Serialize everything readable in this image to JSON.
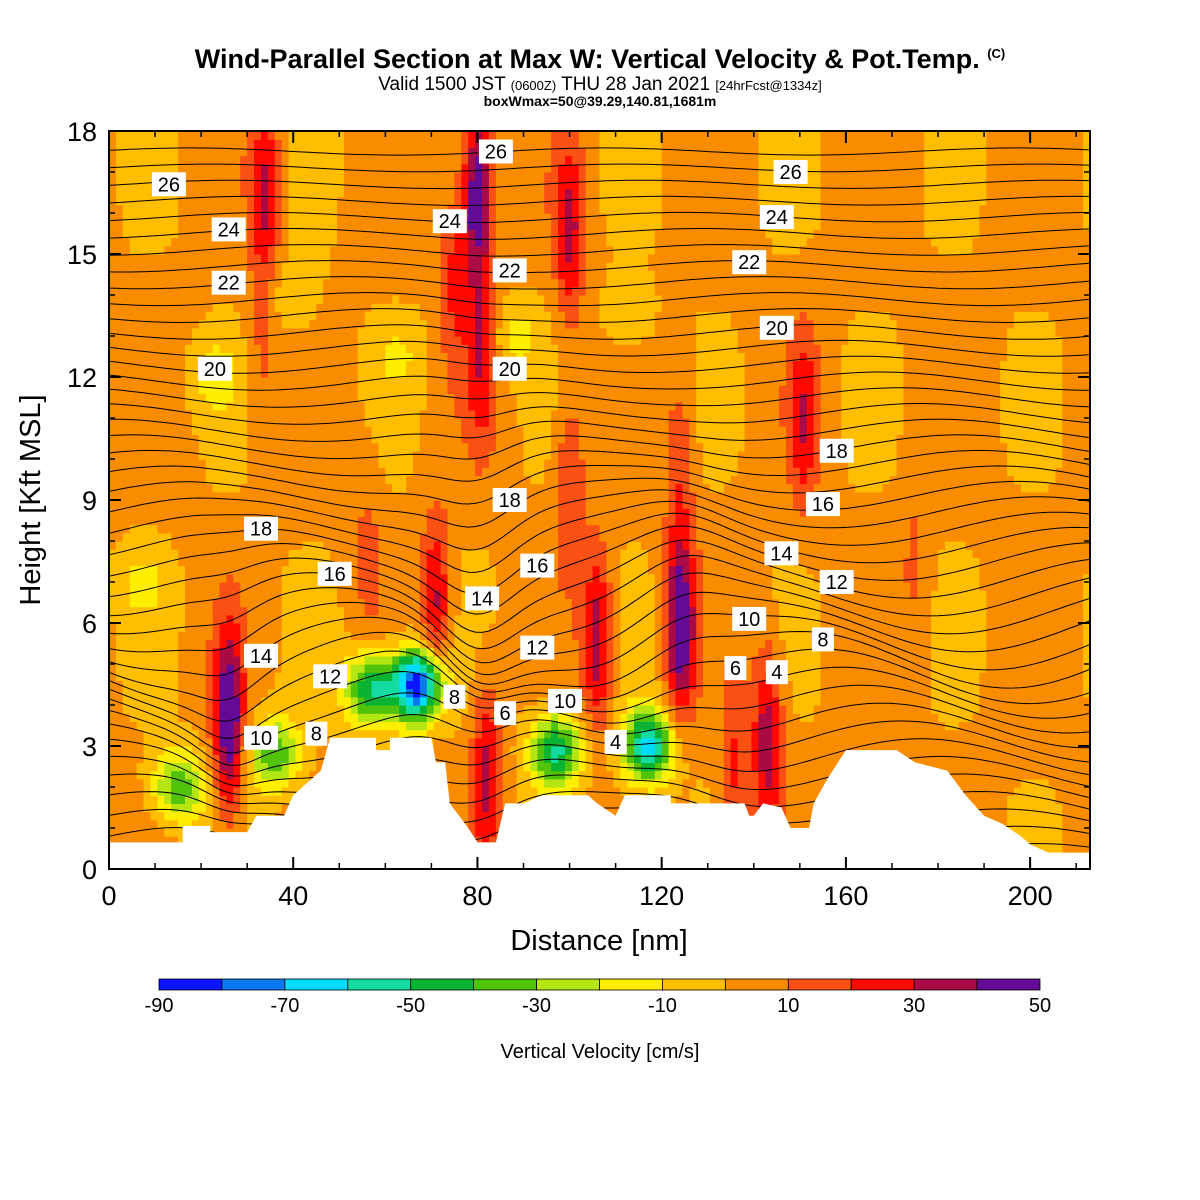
{
  "title": {
    "main": "Wind-Parallel Section at Max W: Vertical Velocity & Pot.Temp.",
    "main_mark": "(C)",
    "valid_a": "Valid 1500 JST",
    "valid_utc": "(0600Z)",
    "valid_b": "THU 28 Jan 2021",
    "fcst": "[24hrFcst@1334z]",
    "box": "boxWmax=50@39.29,140.81,1681m"
  },
  "chart_data": {
    "type": "heatmap",
    "xlabel": "Distance [nm]",
    "ylabel": "Height [Kft MSL]",
    "xlim": [
      0,
      213
    ],
    "ylim": [
      0,
      18
    ],
    "x_ticks": [
      0,
      40,
      80,
      120,
      160,
      200
    ],
    "y_ticks": [
      0,
      3,
      6,
      9,
      12,
      15,
      18
    ],
    "colorbar": {
      "label": "Vertical Velocity [cm/s]",
      "tick_labels": [
        -90,
        -70,
        -50,
        -30,
        -10,
        10,
        30,
        50
      ],
      "bins": [
        {
          "from": -90,
          "to": -80,
          "color": "#0a14ff"
        },
        {
          "from": -80,
          "to": -70,
          "color": "#0a78f0"
        },
        {
          "from": -70,
          "to": -60,
          "color": "#00dcff"
        },
        {
          "from": -60,
          "to": -50,
          "color": "#14dca0"
        },
        {
          "from": -50,
          "to": -40,
          "color": "#0ab432"
        },
        {
          "from": -40,
          "to": -30,
          "color": "#50c30a"
        },
        {
          "from": -30,
          "to": -20,
          "color": "#b4e614"
        },
        {
          "from": -20,
          "to": -10,
          "color": "#ffee00"
        },
        {
          "from": -10,
          "to": 0,
          "color": "#ffbe00"
        },
        {
          "from": 0,
          "to": 10,
          "color": "#fa8c00"
        },
        {
          "from": 10,
          "to": 20,
          "color": "#fa5014"
        },
        {
          "from": 20,
          "to": 30,
          "color": "#ff0a00"
        },
        {
          "from": 30,
          "to": 40,
          "color": "#aa0a46"
        },
        {
          "from": 40,
          "to": 50,
          "color": "#640a96"
        }
      ]
    },
    "terrain": [
      [
        0,
        0.65
      ],
      [
        16,
        0.65
      ],
      [
        16,
        1.05
      ],
      [
        22,
        1.05
      ],
      [
        22,
        0.9
      ],
      [
        30,
        0.9
      ],
      [
        32,
        1.3
      ],
      [
        38,
        1.3
      ],
      [
        40,
        1.8
      ],
      [
        46,
        2.4
      ],
      [
        48,
        3.2
      ],
      [
        58,
        3.2
      ],
      [
        58,
        2.9
      ],
      [
        61,
        2.9
      ],
      [
        61,
        3.2
      ],
      [
        70,
        3.2
      ],
      [
        71,
        2.6
      ],
      [
        73,
        2.6
      ],
      [
        74,
        1.6
      ],
      [
        78,
        1.0
      ],
      [
        80,
        0.65
      ],
      [
        84,
        0.65
      ],
      [
        86,
        1.6
      ],
      [
        90,
        1.6
      ],
      [
        94,
        1.8
      ],
      [
        104,
        1.8
      ],
      [
        106,
        1.6
      ],
      [
        110,
        1.3
      ],
      [
        112,
        1.8
      ],
      [
        122,
        1.8
      ],
      [
        122,
        1.6
      ],
      [
        138,
        1.6
      ],
      [
        139,
        1.3
      ],
      [
        140,
        1.3
      ],
      [
        142,
        1.6
      ],
      [
        146,
        1.5
      ],
      [
        148,
        1.0
      ],
      [
        152,
        1.0
      ],
      [
        153,
        1.6
      ],
      [
        156,
        2.2
      ],
      [
        160,
        2.9
      ],
      [
        171,
        2.9
      ],
      [
        175,
        2.6
      ],
      [
        182,
        2.4
      ],
      [
        186,
        1.8
      ],
      [
        190,
        1.3
      ],
      [
        194,
        1.1
      ],
      [
        198,
        0.8
      ],
      [
        200,
        0.6
      ],
      [
        204,
        0.4
      ],
      [
        213,
        0.4
      ]
    ],
    "velocity_features": [
      {
        "x": 26,
        "y": 3.6,
        "peak": 50
      },
      {
        "x": 34,
        "y": 16.5,
        "peak": 30
      },
      {
        "x": 33,
        "y": 12.5,
        "peak": 10
      },
      {
        "x": 80,
        "y": 16.5,
        "peak": 50
      },
      {
        "x": 81,
        "y": 12.5,
        "peak": 25
      },
      {
        "x": 75,
        "y": 14.5,
        "peak": 20
      },
      {
        "x": 71,
        "y": 6.5,
        "peak": 30
      },
      {
        "x": 100,
        "y": 15.5,
        "peak": 30
      },
      {
        "x": 100,
        "y": 9.5,
        "peak": 20
      },
      {
        "x": 106,
        "y": 5.6,
        "peak": 35
      },
      {
        "x": 124,
        "y": 6.0,
        "peak": 50
      },
      {
        "x": 124,
        "y": 10.0,
        "peak": 15
      },
      {
        "x": 82,
        "y": 2.4,
        "peak": 30
      },
      {
        "x": 143,
        "y": 3.2,
        "peak": 35
      },
      {
        "x": 136,
        "y": 2.4,
        "peak": 20
      },
      {
        "x": 151,
        "y": 11.0,
        "peak": 25
      },
      {
        "x": 56,
        "y": 8.0,
        "peak": 10
      },
      {
        "x": 175,
        "y": 7.5,
        "peak": 10
      },
      {
        "x": 15,
        "y": 2.0,
        "peak": -40
      },
      {
        "x": 36,
        "y": 2.8,
        "peak": -40
      },
      {
        "x": 57,
        "y": 4.4,
        "peak": -55
      },
      {
        "x": 67,
        "y": 4.5,
        "peak": -90
      },
      {
        "x": 97,
        "y": 2.9,
        "peak": -55
      },
      {
        "x": 117,
        "y": 3.0,
        "peak": -65
      },
      {
        "x": 23,
        "y": 12.0,
        "peak": -15
      },
      {
        "x": 40,
        "y": 14.0,
        "peak": -12
      },
      {
        "x": 63,
        "y": 12.5,
        "peak": -10
      },
      {
        "x": 88,
        "y": 13.0,
        "peak": -15
      },
      {
        "x": 113,
        "y": 13.5,
        "peak": -12
      },
      {
        "x": 7,
        "y": 7.0,
        "peak": -12
      }
    ],
    "theta_labels": [
      {
        "text": "26",
        "x": 13,
        "y": 16.7
      },
      {
        "text": "24",
        "x": 26,
        "y": 15.6
      },
      {
        "text": "22",
        "x": 26,
        "y": 14.3
      },
      {
        "text": "20",
        "x": 23,
        "y": 12.2
      },
      {
        "text": "18",
        "x": 33,
        "y": 8.3
      },
      {
        "text": "16",
        "x": 49,
        "y": 7.2
      },
      {
        "text": "14",
        "x": 33,
        "y": 5.2
      },
      {
        "text": "12",
        "x": 48,
        "y": 4.7
      },
      {
        "text": "10",
        "x": 33,
        "y": 3.2
      },
      {
        "text": "8",
        "x": 45,
        "y": 3.3
      },
      {
        "text": "26",
        "x": 84,
        "y": 17.5
      },
      {
        "text": "24",
        "x": 74,
        "y": 15.8
      },
      {
        "text": "22",
        "x": 87,
        "y": 14.6
      },
      {
        "text": "20",
        "x": 87,
        "y": 12.2
      },
      {
        "text": "18",
        "x": 87,
        "y": 9.0
      },
      {
        "text": "16",
        "x": 93,
        "y": 7.4
      },
      {
        "text": "14",
        "x": 81,
        "y": 6.6
      },
      {
        "text": "12",
        "x": 93,
        "y": 5.4
      },
      {
        "text": "10",
        "x": 99,
        "y": 4.1
      },
      {
        "text": "8",
        "x": 75,
        "y": 4.2
      },
      {
        "text": "6",
        "x": 86,
        "y": 3.8
      },
      {
        "text": "4",
        "x": 110,
        "y": 3.1
      },
      {
        "text": "26",
        "x": 148,
        "y": 17.0
      },
      {
        "text": "24",
        "x": 145,
        "y": 15.9
      },
      {
        "text": "22",
        "x": 139,
        "y": 14.8
      },
      {
        "text": "20",
        "x": 145,
        "y": 13.2
      },
      {
        "text": "18",
        "x": 158,
        "y": 10.2
      },
      {
        "text": "16",
        "x": 155,
        "y": 8.9
      },
      {
        "text": "14",
        "x": 146,
        "y": 7.7
      },
      {
        "text": "12",
        "x": 158,
        "y": 7.0
      },
      {
        "text": "10",
        "x": 139,
        "y": 6.1
      },
      {
        "text": "8",
        "x": 155,
        "y": 5.6
      },
      {
        "text": "6",
        "x": 136,
        "y": 4.9
      },
      {
        "text": "4",
        "x": 145,
        "y": 4.8
      }
    ]
  }
}
